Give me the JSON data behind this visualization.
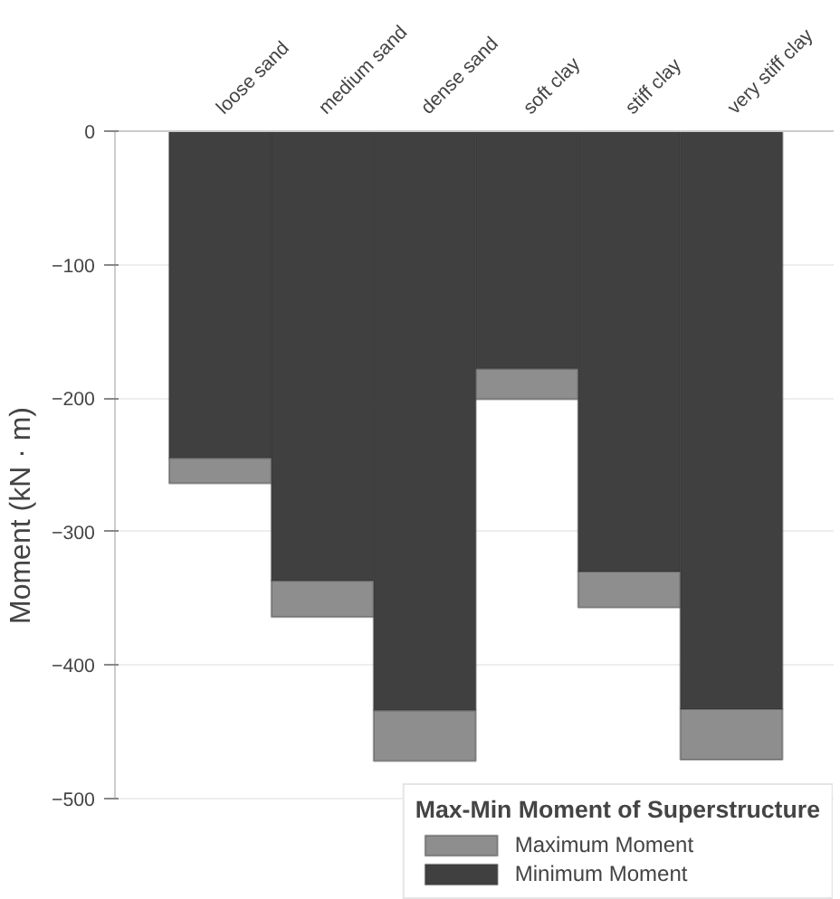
{
  "chart_data": {
    "type": "bar",
    "stacked": true,
    "ylabel": "Moment (kN · m)",
    "legend_title": "Max-Min Moment of Superstructure",
    "categories": [
      "loose sand",
      "medium sand",
      "dense sand",
      "soft clay",
      "stiff clay",
      "very stiff clay"
    ],
    "series": [
      {
        "name": "Minimum Moment",
        "color": "#404040",
        "values": [
          -245,
          -337,
          -434,
          -178,
          -330,
          -433
        ]
      },
      {
        "name": "Maximum Moment",
        "color": "#8e8e8e",
        "values": [
          -19,
          -27,
          -38,
          -23,
          -27,
          -38
        ]
      }
    ],
    "ylim": [
      -500,
      0
    ],
    "yticks": [
      0,
      -100,
      -200,
      -300,
      -400,
      -500
    ],
    "grid": "y",
    "legend": "bottom right"
  }
}
